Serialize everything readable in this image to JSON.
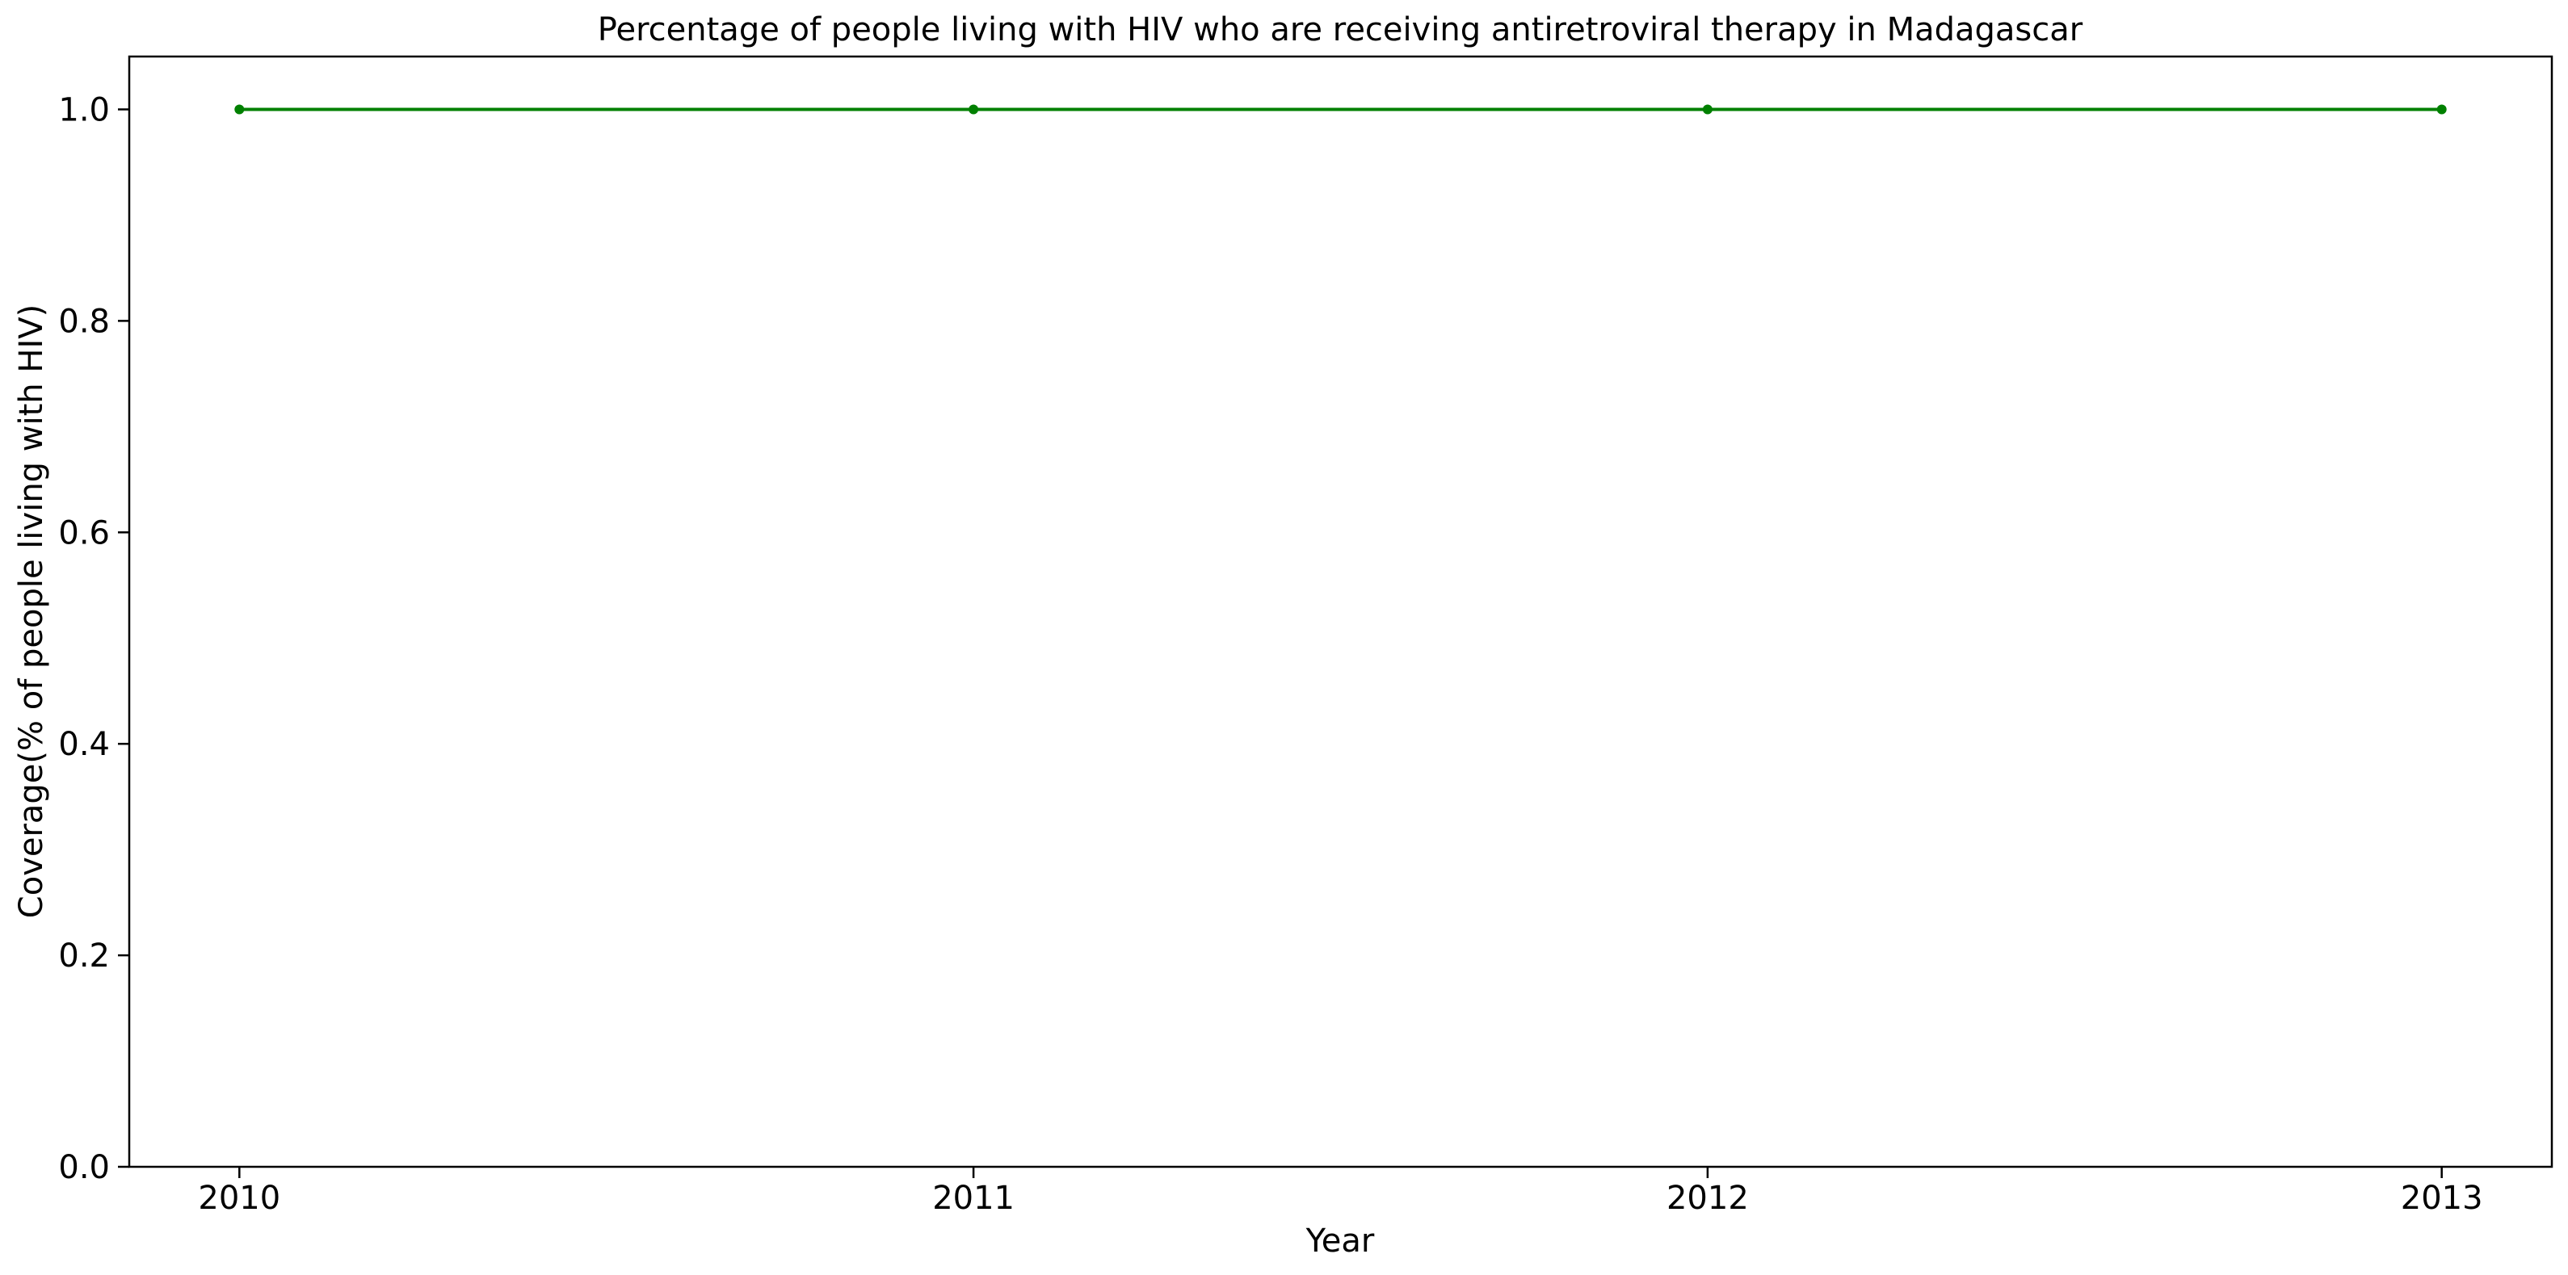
{
  "chart_data": {
    "type": "line",
    "title": "Percentage of people living with HIV who are receiving antiretroviral therapy in Madagascar",
    "xlabel": "Year",
    "ylabel": "Coverage(% of people living with HIV)",
    "x": [
      2010,
      2011,
      2012,
      2013
    ],
    "x_tick_labels": [
      "2010",
      "2011",
      "2012",
      "2013"
    ],
    "series": [
      {
        "values": [
          1.0,
          1.0,
          1.0,
          1.0
        ],
        "color": "#008000",
        "marker": "circle"
      }
    ],
    "y_ticks": [
      0.0,
      0.2,
      0.4,
      0.6,
      0.8,
      1.0
    ],
    "y_tick_labels": [
      "0.0",
      "0.2",
      "0.4",
      "0.6",
      "0.8",
      "1.0"
    ],
    "ylim": [
      0.0,
      1.05
    ],
    "xlim": [
      2009.85,
      2013.15
    ],
    "grid": false,
    "legend": "none"
  }
}
